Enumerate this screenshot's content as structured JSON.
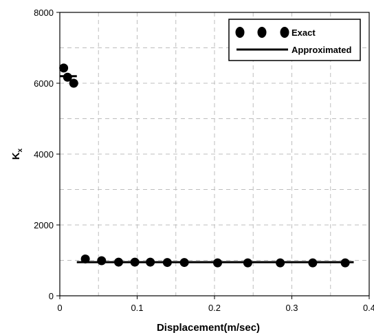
{
  "chart_data": {
    "type": "scatter",
    "xlabel": "Displacement(m/sec)",
    "ylabel_main": "K",
    "ylabel_sub": "x",
    "xlim": [
      0,
      0.4
    ],
    "ylim": [
      0,
      8000
    ],
    "x_ticks": [
      0,
      0.1,
      0.2,
      0.3,
      0.4
    ],
    "x_tick_labels": [
      "0",
      "0.1",
      "0.2",
      "0.3",
      "0.4"
    ],
    "y_ticks": [
      0,
      2000,
      4000,
      6000,
      8000
    ],
    "y_tick_labels": [
      "0",
      "2000",
      "4000",
      "6000",
      "8000"
    ],
    "x_grid": [
      0.05,
      0.1,
      0.15,
      0.2,
      0.25,
      0.3,
      0.35
    ],
    "y_grid": [
      1000,
      2000,
      3000,
      4000,
      5000,
      6000,
      7000
    ],
    "grid": true,
    "legend_position": "top-right",
    "series": [
      {
        "name": "Exact",
        "kind": "scatter",
        "color": "#000000",
        "x": [
          0.005,
          0.01,
          0.018,
          0.033,
          0.054,
          0.076,
          0.097,
          0.117,
          0.139,
          0.161,
          0.204,
          0.243,
          0.285,
          0.327,
          0.369
        ],
        "y": [
          6430,
          6170,
          6000,
          1040,
          990,
          950,
          950,
          950,
          940,
          940,
          930,
          930,
          930,
          930,
          930
        ]
      },
      {
        "name": "Approximated",
        "kind": "line",
        "color": "#000000",
        "segments": [
          {
            "x": [
              0.0,
              0.022
            ],
            "y": [
              6200,
              6200
            ]
          },
          {
            "x": [
              0.022,
              0.38
            ],
            "y": [
              950,
              950
            ]
          }
        ]
      }
    ]
  }
}
